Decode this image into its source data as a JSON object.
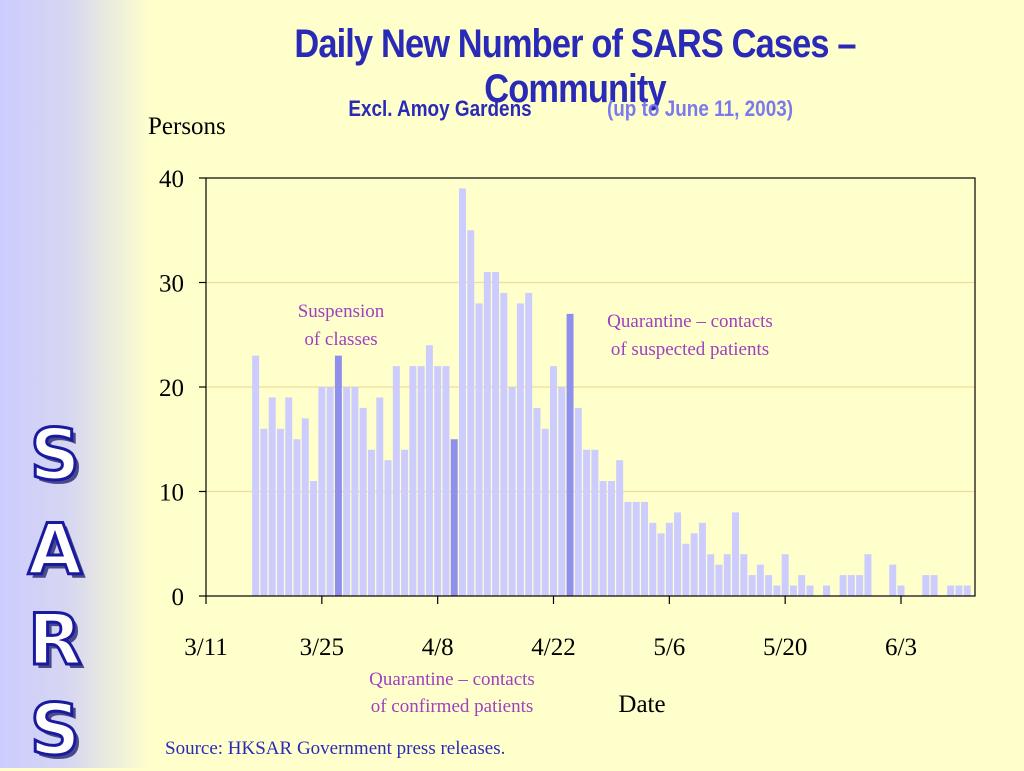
{
  "side_letters": [
    "S",
    "A",
    "R",
    "S"
  ],
  "header": {
    "title": "Daily New Number of SARS Cases – Community",
    "subtitle": "Excl. Amoy Gardens",
    "period": "(up to June 11, 2003)"
  },
  "source": "Source: HKSAR Government press releases.",
  "colors": {
    "bar": "#ccccff",
    "bar_highlight": "#8f8fee",
    "annotation": "#a040c0",
    "title": "#2a2ab8",
    "gridline": "#f0dca0"
  },
  "chart_data": {
    "type": "bar",
    "title": "Daily New Number of SARS Cases – Community",
    "xlabel": "Date",
    "ylabel": "Persons",
    "ylim": [
      0,
      40
    ],
    "yticks": [
      0,
      10,
      20,
      30,
      40
    ],
    "xtick_labels": [
      "3/11",
      "3/25",
      "4/8",
      "4/22",
      "5/6",
      "5/20",
      "6/3"
    ],
    "xtick_dates": [
      "2003-03-11",
      "2003-03-25",
      "2003-04-08",
      "2003-04-22",
      "2003-05-06",
      "2003-05-20",
      "2003-06-03"
    ],
    "grid": true,
    "x": [
      "2003-03-17",
      "2003-03-18",
      "2003-03-19",
      "2003-03-20",
      "2003-03-21",
      "2003-03-22",
      "2003-03-23",
      "2003-03-24",
      "2003-03-25",
      "2003-03-26",
      "2003-03-27",
      "2003-03-28",
      "2003-03-29",
      "2003-03-30",
      "2003-03-31",
      "2003-04-01",
      "2003-04-02",
      "2003-04-03",
      "2003-04-04",
      "2003-04-05",
      "2003-04-06",
      "2003-04-07",
      "2003-04-08",
      "2003-04-09",
      "2003-04-10",
      "2003-04-11",
      "2003-04-12",
      "2003-04-13",
      "2003-04-14",
      "2003-04-15",
      "2003-04-16",
      "2003-04-17",
      "2003-04-18",
      "2003-04-19",
      "2003-04-20",
      "2003-04-21",
      "2003-04-22",
      "2003-04-23",
      "2003-04-24",
      "2003-04-25",
      "2003-04-26",
      "2003-04-27",
      "2003-04-28",
      "2003-04-29",
      "2003-04-30",
      "2003-05-01",
      "2003-05-02",
      "2003-05-03",
      "2003-05-04",
      "2003-05-05",
      "2003-05-06",
      "2003-05-07",
      "2003-05-08",
      "2003-05-09",
      "2003-05-10",
      "2003-05-11",
      "2003-05-12",
      "2003-05-13",
      "2003-05-14",
      "2003-05-15",
      "2003-05-16",
      "2003-05-17",
      "2003-05-18",
      "2003-05-19",
      "2003-05-20",
      "2003-05-21",
      "2003-05-22",
      "2003-05-23",
      "2003-05-24",
      "2003-05-25",
      "2003-05-26",
      "2003-05-27",
      "2003-05-28",
      "2003-05-29",
      "2003-05-30",
      "2003-05-31",
      "2003-06-01",
      "2003-06-02",
      "2003-06-03",
      "2003-06-04",
      "2003-06-05",
      "2003-06-06",
      "2003-06-07",
      "2003-06-08",
      "2003-06-09",
      "2003-06-10",
      "2003-06-11"
    ],
    "values": [
      23,
      16,
      19,
      16,
      19,
      15,
      17,
      11,
      20,
      20,
      23,
      20,
      20,
      18,
      14,
      19,
      13,
      22,
      14,
      22,
      22,
      24,
      22,
      22,
      15,
      39,
      35,
      28,
      31,
      31,
      29,
      20,
      28,
      29,
      18,
      16,
      22,
      20,
      27,
      18,
      14,
      14,
      11,
      11,
      13,
      9,
      9,
      9,
      7,
      6,
      7,
      8,
      5,
      6,
      7,
      4,
      3,
      4,
      8,
      4,
      2,
      3,
      2,
      1,
      4,
      1,
      2,
      1,
      0,
      1,
      0,
      2,
      2,
      2,
      4,
      0,
      0,
      3,
      1,
      0,
      0,
      2,
      2,
      0,
      1,
      1,
      1
    ],
    "highlight_dates": [
      "2003-03-27",
      "2003-04-10",
      "2003-04-24"
    ],
    "annotations": [
      {
        "lines": [
          "Suspension",
          "of classes"
        ],
        "date": "2003-03-27"
      },
      {
        "lines": [
          "Quarantine – contacts",
          "of suspected patients"
        ],
        "date": "2003-04-24"
      },
      {
        "lines": [
          "Quarantine – contacts",
          "of confirmed patients"
        ],
        "date": "2003-04-10"
      }
    ]
  }
}
